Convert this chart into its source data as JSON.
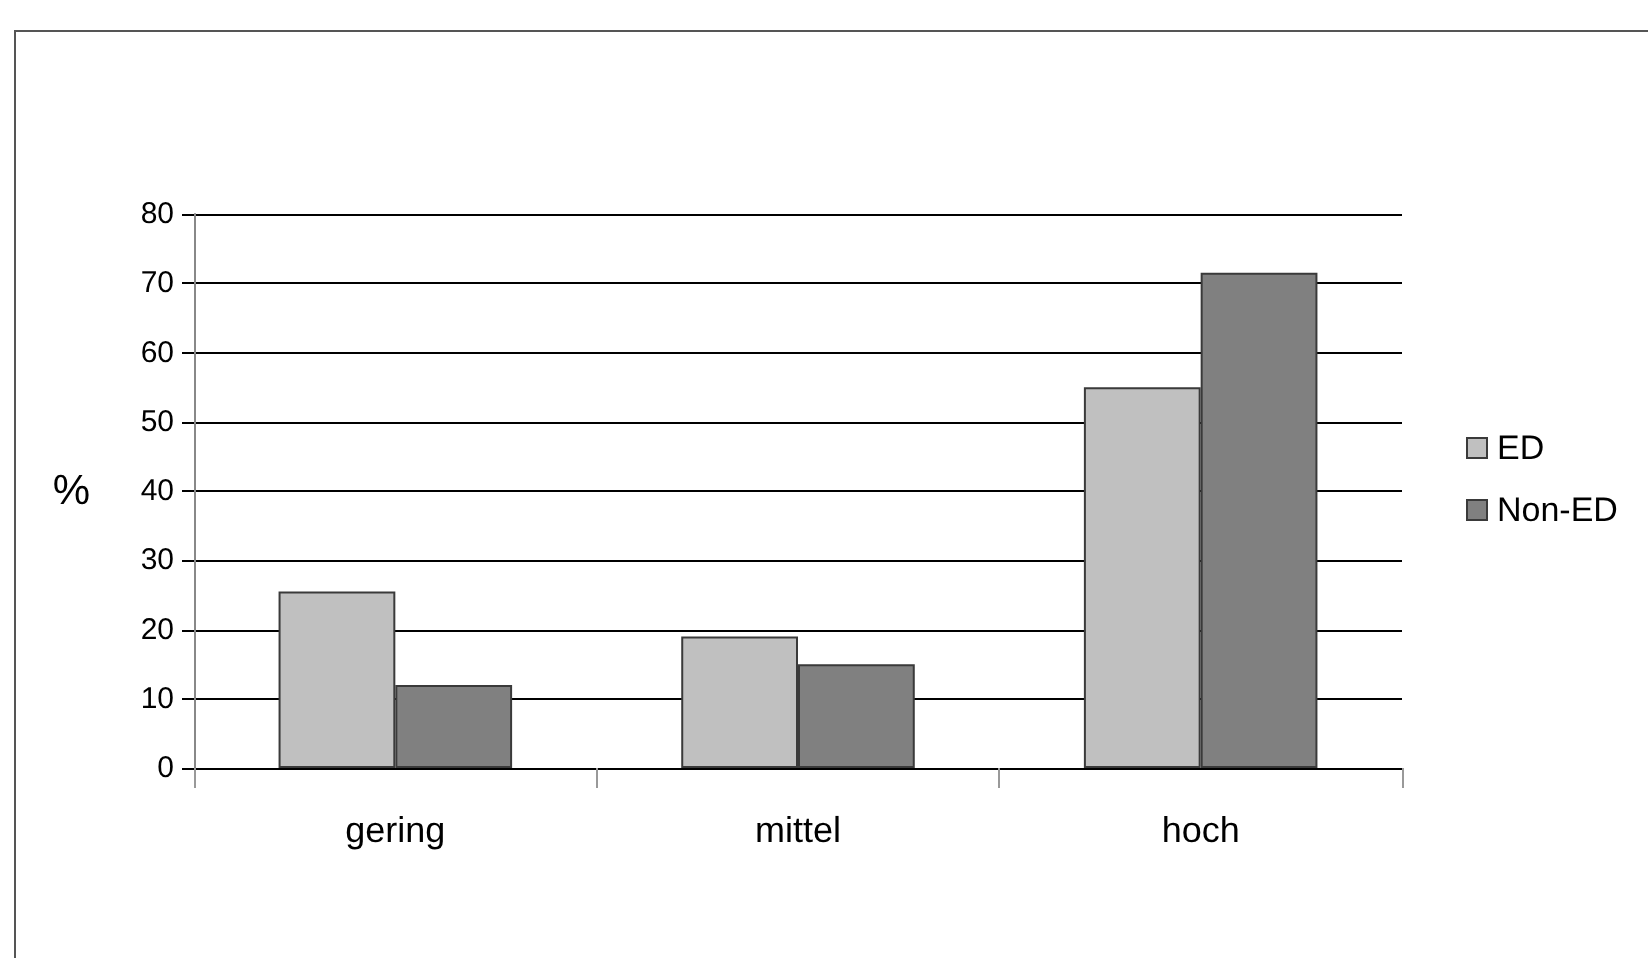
{
  "chart_data": {
    "type": "bar",
    "ylabel": "%",
    "categories": [
      "gering",
      "mittel",
      "hoch"
    ],
    "series": [
      {
        "name": "ED",
        "color": "#c0c0c0",
        "values": [
          25.5,
          19,
          55
        ]
      },
      {
        "name": "Non-ED",
        "color": "#808080",
        "values": [
          12,
          15,
          71.5
        ]
      }
    ],
    "ylim": [
      0,
      80
    ],
    "yticks": [
      0,
      10,
      20,
      30,
      40,
      50,
      60,
      70,
      80
    ],
    "grid": "y",
    "legend": "right"
  }
}
